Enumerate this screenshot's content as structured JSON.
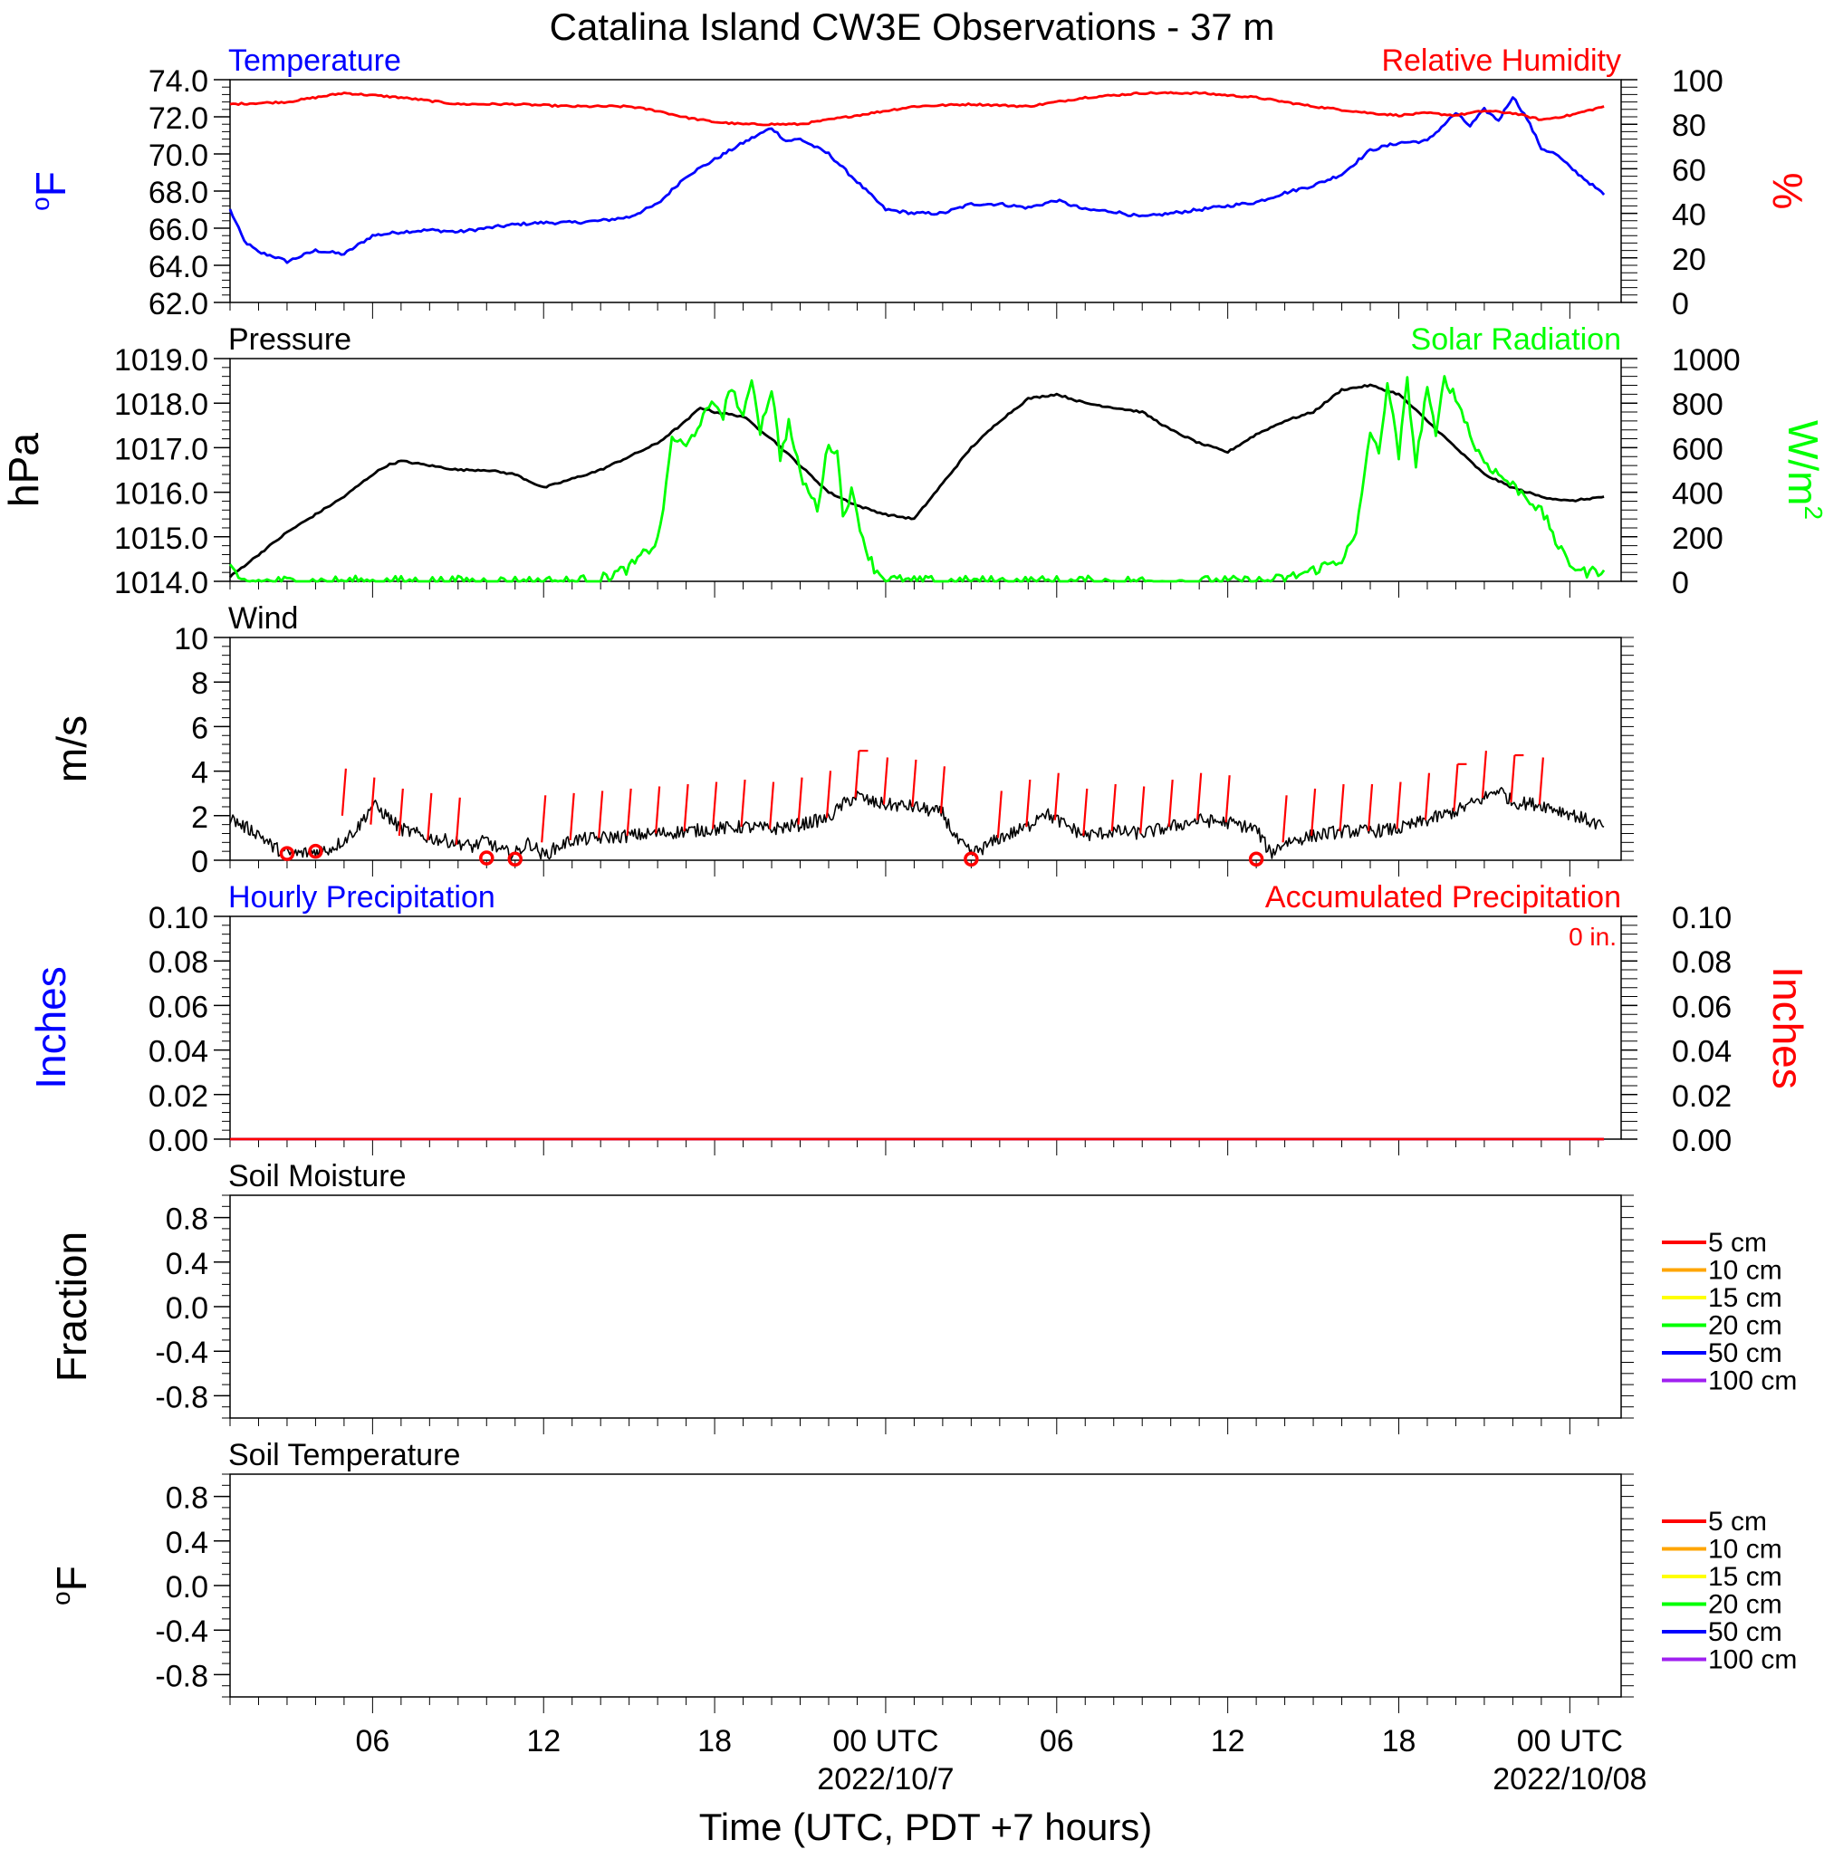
{
  "title": "Catalina Island CW3E Observations - 37 m",
  "xlabel": "Time (UTC, PDT +7 hours)",
  "time_axis": {
    "range_hours": [
      0,
      48.8
    ],
    "ticks": [
      {
        "h": 5,
        "label": "06",
        "date": ""
      },
      {
        "h": 11,
        "label": "12",
        "date": ""
      },
      {
        "h": 17,
        "label": "18",
        "date": ""
      },
      {
        "h": 23,
        "label": "00 UTC",
        "date": "2022/10/7"
      },
      {
        "h": 29,
        "label": "06",
        "date": ""
      },
      {
        "h": 35,
        "label": "12",
        "date": ""
      },
      {
        "h": 41,
        "label": "18",
        "date": ""
      },
      {
        "h": 47,
        "label": "00 UTC",
        "date": "2022/10/08"
      }
    ]
  },
  "colors": {
    "temperature": "#0000ff",
    "humidity": "#ff0000",
    "pressure": "#000000",
    "solar": "#00ff00",
    "wind": "#000000",
    "barb": "#ff0000",
    "precip_hourly": "#0000ff",
    "precip_accum": "#ff0000"
  },
  "chart_data": [
    {
      "name": "temperature",
      "type": "line",
      "title": "Temperature",
      "right_title": "Relative Humidity",
      "ylabel_text": "F",
      "ylabel_sup": "o",
      "y2label": "%",
      "ylim": [
        62,
        74
      ],
      "yticks": [
        "62.0",
        "64.0",
        "66.0",
        "68.0",
        "70.0",
        "72.0",
        "74.0"
      ],
      "y2lim": [
        0,
        100
      ],
      "y2ticks": [
        "0",
        "20",
        "40",
        "60",
        "80",
        "100"
      ],
      "series": [
        {
          "name": "Temperature",
          "axis": "left",
          "x": [
            0,
            0.5,
            1,
            1.5,
            2,
            2.5,
            3,
            3.5,
            4,
            5,
            6,
            7,
            8,
            9,
            10,
            11,
            12,
            13,
            14,
            15,
            16,
            17,
            18,
            18.5,
            19,
            19.5,
            20,
            21,
            22,
            23,
            24,
            25,
            26,
            27,
            28,
            29,
            30,
            31,
            32,
            33,
            34,
            35,
            36,
            37,
            38,
            39,
            40,
            41,
            42,
            43,
            43.5,
            44,
            44.5,
            45,
            45.5,
            46,
            46.5,
            47,
            48.2
          ],
          "y": [
            67.0,
            65.3,
            64.7,
            64.5,
            64.2,
            64.5,
            64.8,
            64.7,
            64.6,
            65.6,
            65.8,
            65.9,
            65.8,
            66.0,
            66.2,
            66.3,
            66.3,
            66.4,
            66.6,
            67.3,
            68.8,
            69.7,
            70.6,
            71.0,
            71.4,
            70.7,
            70.8,
            70.0,
            68.5,
            67.0,
            66.8,
            66.8,
            67.3,
            67.3,
            67.1,
            67.5,
            67.0,
            66.9,
            66.6,
            66.8,
            67.0,
            67.2,
            67.4,
            67.9,
            68.3,
            68.9,
            70.2,
            70.6,
            70.7,
            72.2,
            71.5,
            72.4,
            71.8,
            73.1,
            71.9,
            70.3,
            70.0,
            69.3,
            67.8
          ]
        },
        {
          "name": "Relative Humidity",
          "axis": "right",
          "x": [
            0,
            2,
            4,
            6,
            8,
            10,
            12,
            14,
            15,
            16,
            17,
            18,
            19,
            20,
            21,
            22,
            23,
            24,
            26,
            28,
            30,
            32,
            34,
            36,
            38,
            40,
            41,
            42,
            43,
            44,
            45,
            46,
            47,
            48.2
          ],
          "y": [
            89,
            90,
            94,
            92,
            89,
            89,
            88,
            88,
            86,
            83,
            81,
            80,
            80,
            80,
            82,
            84,
            86,
            88,
            89,
            88,
            92,
            94,
            94,
            92,
            88,
            85,
            84,
            85,
            84,
            86,
            85,
            82,
            84,
            88
          ]
        }
      ]
    },
    {
      "name": "pressure",
      "type": "line",
      "title": "Pressure",
      "right_title": "Solar Radiation",
      "ylabel_text": "hPa",
      "y2label_text": "W/m",
      "y2label_sup": "2",
      "ylim": [
        1014,
        1019
      ],
      "yticks": [
        "1014.0",
        "1015.0",
        "1016.0",
        "1017.0",
        "1018.0",
        "1019.0"
      ],
      "y2lim": [
        0,
        1000
      ],
      "y2ticks": [
        "0",
        "200",
        "400",
        "600",
        "800",
        "1000"
      ],
      "series": [
        {
          "name": "Pressure",
          "axis": "left",
          "x": [
            0,
            1,
            2,
            3,
            4,
            5,
            5.5,
            6,
            7,
            8,
            9,
            10,
            11,
            12,
            13,
            14,
            15,
            16,
            16.5,
            17,
            18,
            19,
            20,
            21,
            22,
            23,
            24,
            25,
            26,
            27,
            28,
            29,
            30,
            31,
            32,
            33,
            34,
            35,
            36,
            37,
            38,
            39,
            40,
            41,
            42,
            43,
            44,
            45,
            46,
            47,
            48.2
          ],
          "y": [
            1014.1,
            1014.6,
            1015.1,
            1015.5,
            1015.9,
            1016.4,
            1016.6,
            1016.7,
            1016.6,
            1016.5,
            1016.5,
            1016.4,
            1016.1,
            1016.3,
            1016.5,
            1016.8,
            1017.1,
            1017.6,
            1017.9,
            1017.8,
            1017.7,
            1017.2,
            1016.6,
            1016.0,
            1015.7,
            1015.5,
            1015.4,
            1016.2,
            1017.0,
            1017.6,
            1018.1,
            1018.2,
            1018.0,
            1017.9,
            1017.8,
            1017.4,
            1017.1,
            1016.9,
            1017.3,
            1017.6,
            1017.8,
            1018.3,
            1018.4,
            1018.2,
            1017.6,
            1017.0,
            1016.4,
            1016.1,
            1015.9,
            1015.8,
            1015.9
          ]
        },
        {
          "name": "Solar Radiation",
          "axis": "right",
          "x": [
            0,
            0.3,
            1,
            12,
            13,
            14,
            15,
            15.3,
            15.5,
            16,
            16.5,
            17,
            17.3,
            17.6,
            18,
            18.3,
            18.6,
            19,
            19.3,
            19.6,
            20,
            20.3,
            20.6,
            21,
            21.3,
            21.5,
            21.8,
            22,
            22.3,
            22.6,
            23,
            24,
            25,
            36,
            37,
            38,
            39,
            39.5,
            40,
            40.3,
            40.6,
            41,
            41.3,
            41.6,
            42,
            42.3,
            42.6,
            43,
            43.3,
            43.6,
            44,
            44.5,
            45,
            45.5,
            46,
            46.3,
            46.6,
            47,
            47.5,
            48.2
          ],
          "y": [
            60,
            0,
            0,
            0,
            10,
            60,
            180,
            420,
            650,
            600,
            720,
            800,
            750,
            880,
            720,
            920,
            680,
            870,
            560,
            710,
            480,
            400,
            330,
            620,
            580,
            300,
            400,
            300,
            150,
            60,
            10,
            0,
            0,
            0,
            10,
            50,
            100,
            200,
            680,
            560,
            900,
            560,
            900,
            520,
            880,
            640,
            920,
            820,
            740,
            620,
            540,
            480,
            430,
            380,
            310,
            250,
            150,
            80,
            40,
            50
          ]
        }
      ]
    },
    {
      "name": "wind",
      "type": "line",
      "title": "Wind",
      "ylabel_text": "m/s",
      "ylim": [
        0,
        10
      ],
      "yticks": [
        "0",
        "2",
        "4",
        "6",
        "8",
        "10"
      ],
      "series": [
        {
          "name": "Wind speed",
          "axis": "left",
          "x": [
            0,
            0.5,
            1,
            1.5,
            2,
            2.5,
            3,
            3.5,
            4,
            4.5,
            5,
            5.5,
            6,
            7,
            8,
            8.5,
            9,
            9.5,
            10,
            10.5,
            11,
            11.5,
            12,
            13,
            14,
            15,
            16,
            17,
            18,
            19,
            20,
            21,
            21.5,
            22,
            22.5,
            23,
            24,
            25,
            25.5,
            26,
            26.5,
            27,
            28,
            28.5,
            29,
            30,
            31,
            32,
            33,
            34,
            35,
            36,
            36.5,
            37,
            38,
            39,
            40,
            41,
            42,
            43,
            44,
            44.5,
            45,
            46,
            47,
            48.2
          ],
          "y": [
            1.9,
            1.5,
            1.2,
            0.6,
            0.3,
            0.3,
            0.4,
            0.5,
            0.9,
            1.5,
            2.5,
            2.0,
            1.4,
            1.0,
            0.8,
            0.6,
            0.9,
            0.4,
            0.3,
            0.8,
            0.2,
            0.6,
            0.9,
            1.0,
            1.1,
            1.2,
            1.3,
            1.4,
            1.5,
            1.4,
            1.6,
            1.9,
            2.5,
            2.9,
            2.6,
            2.5,
            2.4,
            2.1,
            0.9,
            0.3,
            0.6,
            1.0,
            1.5,
            2.2,
            1.8,
            1.1,
            1.3,
            1.2,
            1.5,
            1.8,
            1.7,
            1.4,
            0.3,
            0.8,
            1.1,
            1.3,
            1.3,
            1.4,
            1.8,
            2.2,
            2.8,
            3.2,
            2.6,
            2.5,
            2.1,
            1.5
          ]
        },
        {
          "name": "Calm",
          "axis": "left",
          "marker": "circle",
          "x": [
            2,
            3,
            9,
            10,
            26,
            36
          ],
          "y": [
            0.3,
            0.4,
            0.1,
            0.05,
            0.05,
            0.05
          ]
        }
      ],
      "barbs": {
        "x": [
          4,
          5,
          6,
          7,
          8,
          11,
          12,
          13,
          14,
          15,
          16,
          17,
          18,
          19,
          20,
          21,
          22,
          23,
          24,
          25,
          27,
          28,
          29,
          30,
          31,
          32,
          33,
          34,
          35,
          37,
          38,
          39,
          40,
          41,
          42,
          43,
          44,
          45,
          46
        ],
        "base": [
          2.0,
          1.6,
          1.1,
          0.9,
          0.7,
          0.8,
          0.9,
          1.0,
          1.1,
          1.2,
          1.3,
          1.4,
          1.5,
          1.4,
          1.6,
          1.9,
          2.8,
          2.5,
          2.4,
          2.1,
          1.0,
          1.5,
          1.8,
          1.1,
          1.3,
          1.2,
          1.5,
          1.8,
          1.7,
          0.8,
          1.1,
          1.3,
          1.3,
          1.4,
          1.8,
          2.2,
          2.8,
          2.6,
          2.5
        ],
        "flag": [
          false,
          false,
          false,
          false,
          false,
          false,
          false,
          false,
          false,
          false,
          false,
          false,
          false,
          false,
          false,
          false,
          true,
          false,
          false,
          false,
          false,
          false,
          false,
          false,
          false,
          false,
          false,
          false,
          false,
          false,
          false,
          false,
          false,
          false,
          false,
          true,
          false,
          true,
          false
        ]
      }
    },
    {
      "name": "precipitation",
      "type": "line",
      "title": "Hourly Precipitation",
      "right_title": "Accumulated Precipitation",
      "annotation": "0 in.",
      "ylabel_text": "Inches",
      "y2label": "Inches",
      "ylim": [
        0,
        0.1
      ],
      "yticks": [
        "0.00",
        "0.02",
        "0.04",
        "0.06",
        "0.08",
        "0.10"
      ],
      "y2lim": [
        0,
        0.1
      ],
      "y2ticks": [
        "0.00",
        "0.02",
        "0.04",
        "0.06",
        "0.08",
        "0.10"
      ],
      "series": [
        {
          "name": "Hourly Precipitation",
          "axis": "left",
          "x": [
            0,
            48.2
          ],
          "y": [
            0,
            0
          ]
        },
        {
          "name": "Accumulated Precipitation",
          "axis": "right",
          "x": [
            0,
            48.2
          ],
          "y": [
            0,
            0
          ]
        }
      ]
    },
    {
      "name": "soil_moisture",
      "type": "line",
      "title": "Soil Moisture",
      "ylabel_text": "Fraction",
      "ylim": [
        -1,
        1
      ],
      "yticks": [
        "-0.8",
        "-0.4",
        "0.0",
        "0.4",
        "0.8"
      ],
      "ytick_values": [
        -0.8,
        -0.4,
        0.0,
        0.4,
        0.8
      ],
      "legend": [
        {
          "label": "5 cm",
          "color": "#ff0000"
        },
        {
          "label": "10 cm",
          "color": "#ffa500"
        },
        {
          "label": "15 cm",
          "color": "#ffff00"
        },
        {
          "label": "20 cm",
          "color": "#00ff00"
        },
        {
          "label": "50 cm",
          "color": "#0000ff"
        },
        {
          "label": "100 cm",
          "color": "#a020f0"
        }
      ],
      "series": []
    },
    {
      "name": "soil_temperature",
      "type": "line",
      "title": "Soil Temperature",
      "ylabel_text": "F",
      "ylabel_sup": "o",
      "ylim": [
        -1,
        1
      ],
      "yticks": [
        "-0.8",
        "-0.4",
        "0.0",
        "0.4",
        "0.8"
      ],
      "ytick_values": [
        -0.8,
        -0.4,
        0.0,
        0.4,
        0.8
      ],
      "legend": [
        {
          "label": "5 cm",
          "color": "#ff0000"
        },
        {
          "label": "10 cm",
          "color": "#ffa500"
        },
        {
          "label": "15 cm",
          "color": "#ffff00"
        },
        {
          "label": "20 cm",
          "color": "#00ff00"
        },
        {
          "label": "50 cm",
          "color": "#0000ff"
        },
        {
          "label": "100 cm",
          "color": "#a020f0"
        }
      ],
      "series": []
    }
  ]
}
